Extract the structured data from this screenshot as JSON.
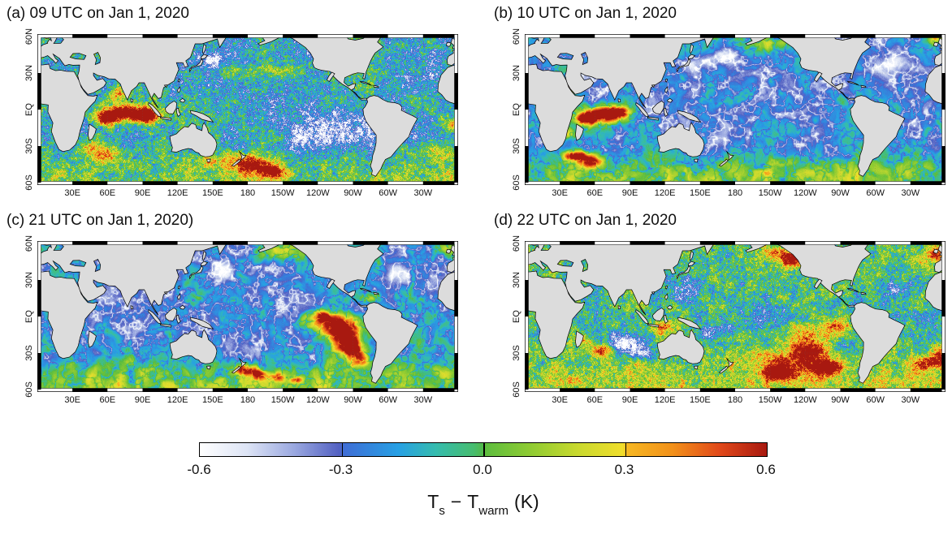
{
  "chart_data": {
    "type": "heatmap",
    "projection": "equirectangular",
    "lon_range": [
      0,
      360
    ],
    "lat_range": [
      -62,
      62
    ],
    "grid_interval_deg": 30,
    "land_color": "#dcdcdc",
    "coast_color": "#000000",
    "panels": [
      {
        "id": "a",
        "title": "(a) 09 UTC on Jan 1, 2020",
        "texture": "speckled",
        "render": {
          "seed": 101,
          "base": -0.15,
          "speckle": 0.24,
          "meso": 0.21,
          "large": 0.13,
          "jitter": 0.12,
          "south": 0.18,
          "features": [
            [
              75,
              -3,
              16,
              5,
              0.95
            ],
            [
              60,
              -8,
              6,
              4,
              0.7
            ],
            [
              95,
              -5,
              7,
              4,
              0.75
            ],
            [
              68,
              13,
              6,
              4,
              0.5
            ],
            [
              48,
              -32,
              8,
              5,
              0.5
            ],
            [
              62,
              -38,
              10,
              5,
              0.45
            ],
            [
              183,
              -46,
              13,
              6,
              0.8
            ],
            [
              202,
              -52,
              8,
              4,
              0.5
            ],
            [
              150,
              -42,
              8,
              4,
              0.4
            ],
            [
              345,
              -35,
              10,
              5,
              0.35
            ],
            [
              355,
              -12,
              5,
              4,
              0.45
            ],
            [
              195,
              32,
              22,
              4,
              0.3
            ],
            [
              262,
              -15,
              25,
              10,
              -0.28
            ],
            [
              230,
              -28,
              18,
              8,
              -0.2
            ],
            [
              150,
              40,
              10,
              5,
              -0.3
            ],
            [
              330,
              25,
              12,
              6,
              -0.25
            ]
          ]
        }
      },
      {
        "id": "b",
        "title": "(b) 10 UTC on Jan 1, 2020",
        "texture": "smooth",
        "render": {
          "seed": 202,
          "base": -0.22,
          "amp": 0.3,
          "ridge": 0.22,
          "south": 0.38,
          "features": [
            [
              68,
              -4,
              13,
              5,
              1.1
            ],
            [
              52,
              -8,
              6,
              3,
              0.9
            ],
            [
              80,
              -2,
              6,
              3,
              0.6
            ],
            [
              38,
              19,
              2.5,
              6,
              0.7
            ],
            [
              44,
              -38,
              9,
              3,
              0.8
            ],
            [
              57,
              -43,
              8,
              3,
              0.6
            ],
            [
              38,
              -20,
              5,
              3,
              0.5
            ],
            [
              207,
              54,
              14,
              5,
              0.45
            ],
            [
              352,
              58,
              9,
              4,
              0.4
            ],
            [
              152,
              37,
              11,
              5,
              -0.32
            ],
            [
              170,
              43,
              10,
              4,
              -0.28
            ],
            [
              315,
              39,
              12,
              6,
              -0.3
            ],
            [
              165,
              -15,
              30,
              11,
              -0.13
            ]
          ]
        }
      },
      {
        "id": "c",
        "title": "(c) 21 UTC on Jan 1, 2020)",
        "texture": "smooth",
        "render": {
          "seed": 303,
          "base": -0.2,
          "amp": 0.3,
          "ridge": 0.22,
          "south": 0.36,
          "features": [
            [
              253,
              -6,
              16,
              6,
              0.8
            ],
            [
              263,
              -17,
              9,
              7,
              1.0
            ],
            [
              244,
              0,
              8,
              3,
              0.5
            ],
            [
              270,
              -28,
              7,
              5,
              0.7
            ],
            [
              277,
              -36,
              6,
              4,
              0.6
            ],
            [
              178,
              -44,
              6,
              3,
              0.75
            ],
            [
              190,
              -48,
              4,
              3,
              0.6
            ],
            [
              205,
              -50,
              4,
              3,
              0.6
            ],
            [
              222,
              -52,
              4,
              2,
              0.55
            ],
            [
              207,
              53,
              13,
              5,
              0.5
            ],
            [
              283,
              15,
              7,
              3,
              0.5
            ],
            [
              352,
              55,
              8,
              4,
              0.35
            ],
            [
              155,
              38,
              12,
              6,
              -0.32
            ],
            [
              178,
              -30,
              15,
              8,
              -0.18
            ],
            [
              312,
              35,
              10,
              5,
              -0.2
            ]
          ]
        }
      },
      {
        "id": "d",
        "title": "(d) 22 UTC on Jan 1, 2020",
        "texture": "speckled",
        "render": {
          "seed": 404,
          "base": -0.04,
          "speckle": 0.24,
          "meso": 0.21,
          "large": 0.13,
          "jitter": 0.12,
          "south": 0.2,
          "features": [
            [
              228,
              -38,
              22,
              8,
              0.55
            ],
            [
              218,
              -47,
              9,
              4,
              0.75
            ],
            [
              247,
              -28,
              10,
              5,
              0.6
            ],
            [
              260,
              -42,
              9,
              4,
              0.7
            ],
            [
              240,
              -15,
              12,
              6,
              0.45
            ],
            [
              268,
              -8,
              8,
              5,
              0.5
            ],
            [
              228,
              46,
              8,
              4,
              0.7
            ],
            [
              215,
              52,
              10,
              4,
              0.45
            ],
            [
              65,
              -28,
              7,
              4,
              0.75
            ],
            [
              50,
              -20,
              6,
              4,
              0.5
            ],
            [
              345,
              -38,
              9,
              4,
              0.6
            ],
            [
              355,
              -30,
              6,
              4,
              0.5
            ],
            [
              353,
              52,
              7,
              4,
              0.55
            ],
            [
              120,
              -8,
              6,
              4,
              0.5
            ],
            [
              85,
              -22,
              13,
              6,
              -0.5
            ],
            [
              100,
              -30,
              10,
              5,
              -0.3
            ],
            [
              163,
              -12,
              9,
              5,
              -0.35
            ],
            [
              140,
              22,
              10,
              7,
              -0.3
            ],
            [
              318,
              22,
              10,
              6,
              -0.35
            ],
            [
              205,
              0,
              15,
              8,
              -0.2
            ]
          ]
        }
      }
    ],
    "axes": {
      "lat_ticks": [
        {
          "label": "60N",
          "lat": 60
        },
        {
          "label": "30N",
          "lat": 30
        },
        {
          "label": "EQ",
          "lat": 0
        },
        {
          "label": "30S",
          "lat": -30
        },
        {
          "label": "60S",
          "lat": -60
        }
      ],
      "lon_ticks": [
        {
          "label": "30E",
          "lon": 30
        },
        {
          "label": "60E",
          "lon": 60
        },
        {
          "label": "90E",
          "lon": 90
        },
        {
          "label": "120E",
          "lon": 120
        },
        {
          "label": "150E",
          "lon": 150
        },
        {
          "label": "180",
          "lon": 180
        },
        {
          "label": "150W",
          "lon": 210
        },
        {
          "label": "120W",
          "lon": 240
        },
        {
          "label": "90W",
          "lon": 270
        },
        {
          "label": "60W",
          "lon": 300
        },
        {
          "label": "30W",
          "lon": 330
        }
      ]
    },
    "colorbar": {
      "min": -0.6,
      "max": 0.6,
      "tick_labels": [
        "-0.6",
        "-0.3",
        "0.0",
        "0.3",
        "0.6"
      ],
      "divider_values": [
        -0.3,
        0.0,
        0.3
      ],
      "label_parts": {
        "t1": "T",
        "s1": "s",
        "op": "−",
        "t2": "T",
        "s2": "warm",
        "unit": "(K)"
      },
      "stops": [
        [
          -0.6,
          "#ffffff"
        ],
        [
          -0.5,
          "#dde4f5"
        ],
        [
          -0.4,
          "#9aa8e0"
        ],
        [
          -0.305,
          "#5361c2"
        ],
        [
          -0.295,
          "#3f6ed6"
        ],
        [
          -0.18,
          "#27a0e4"
        ],
        [
          -0.1,
          "#35bcae"
        ],
        [
          -0.02,
          "#47bd6f"
        ],
        [
          -0.001,
          "#52b94a"
        ],
        [
          0.001,
          "#5cbd3f"
        ],
        [
          0.1,
          "#8fcb32"
        ],
        [
          0.2,
          "#c9d92e"
        ],
        [
          0.295,
          "#f0de2c"
        ],
        [
          0.305,
          "#f6b723"
        ],
        [
          0.4,
          "#f2911a"
        ],
        [
          0.5,
          "#e1491a"
        ],
        [
          0.6,
          "#a81910"
        ]
      ]
    }
  }
}
